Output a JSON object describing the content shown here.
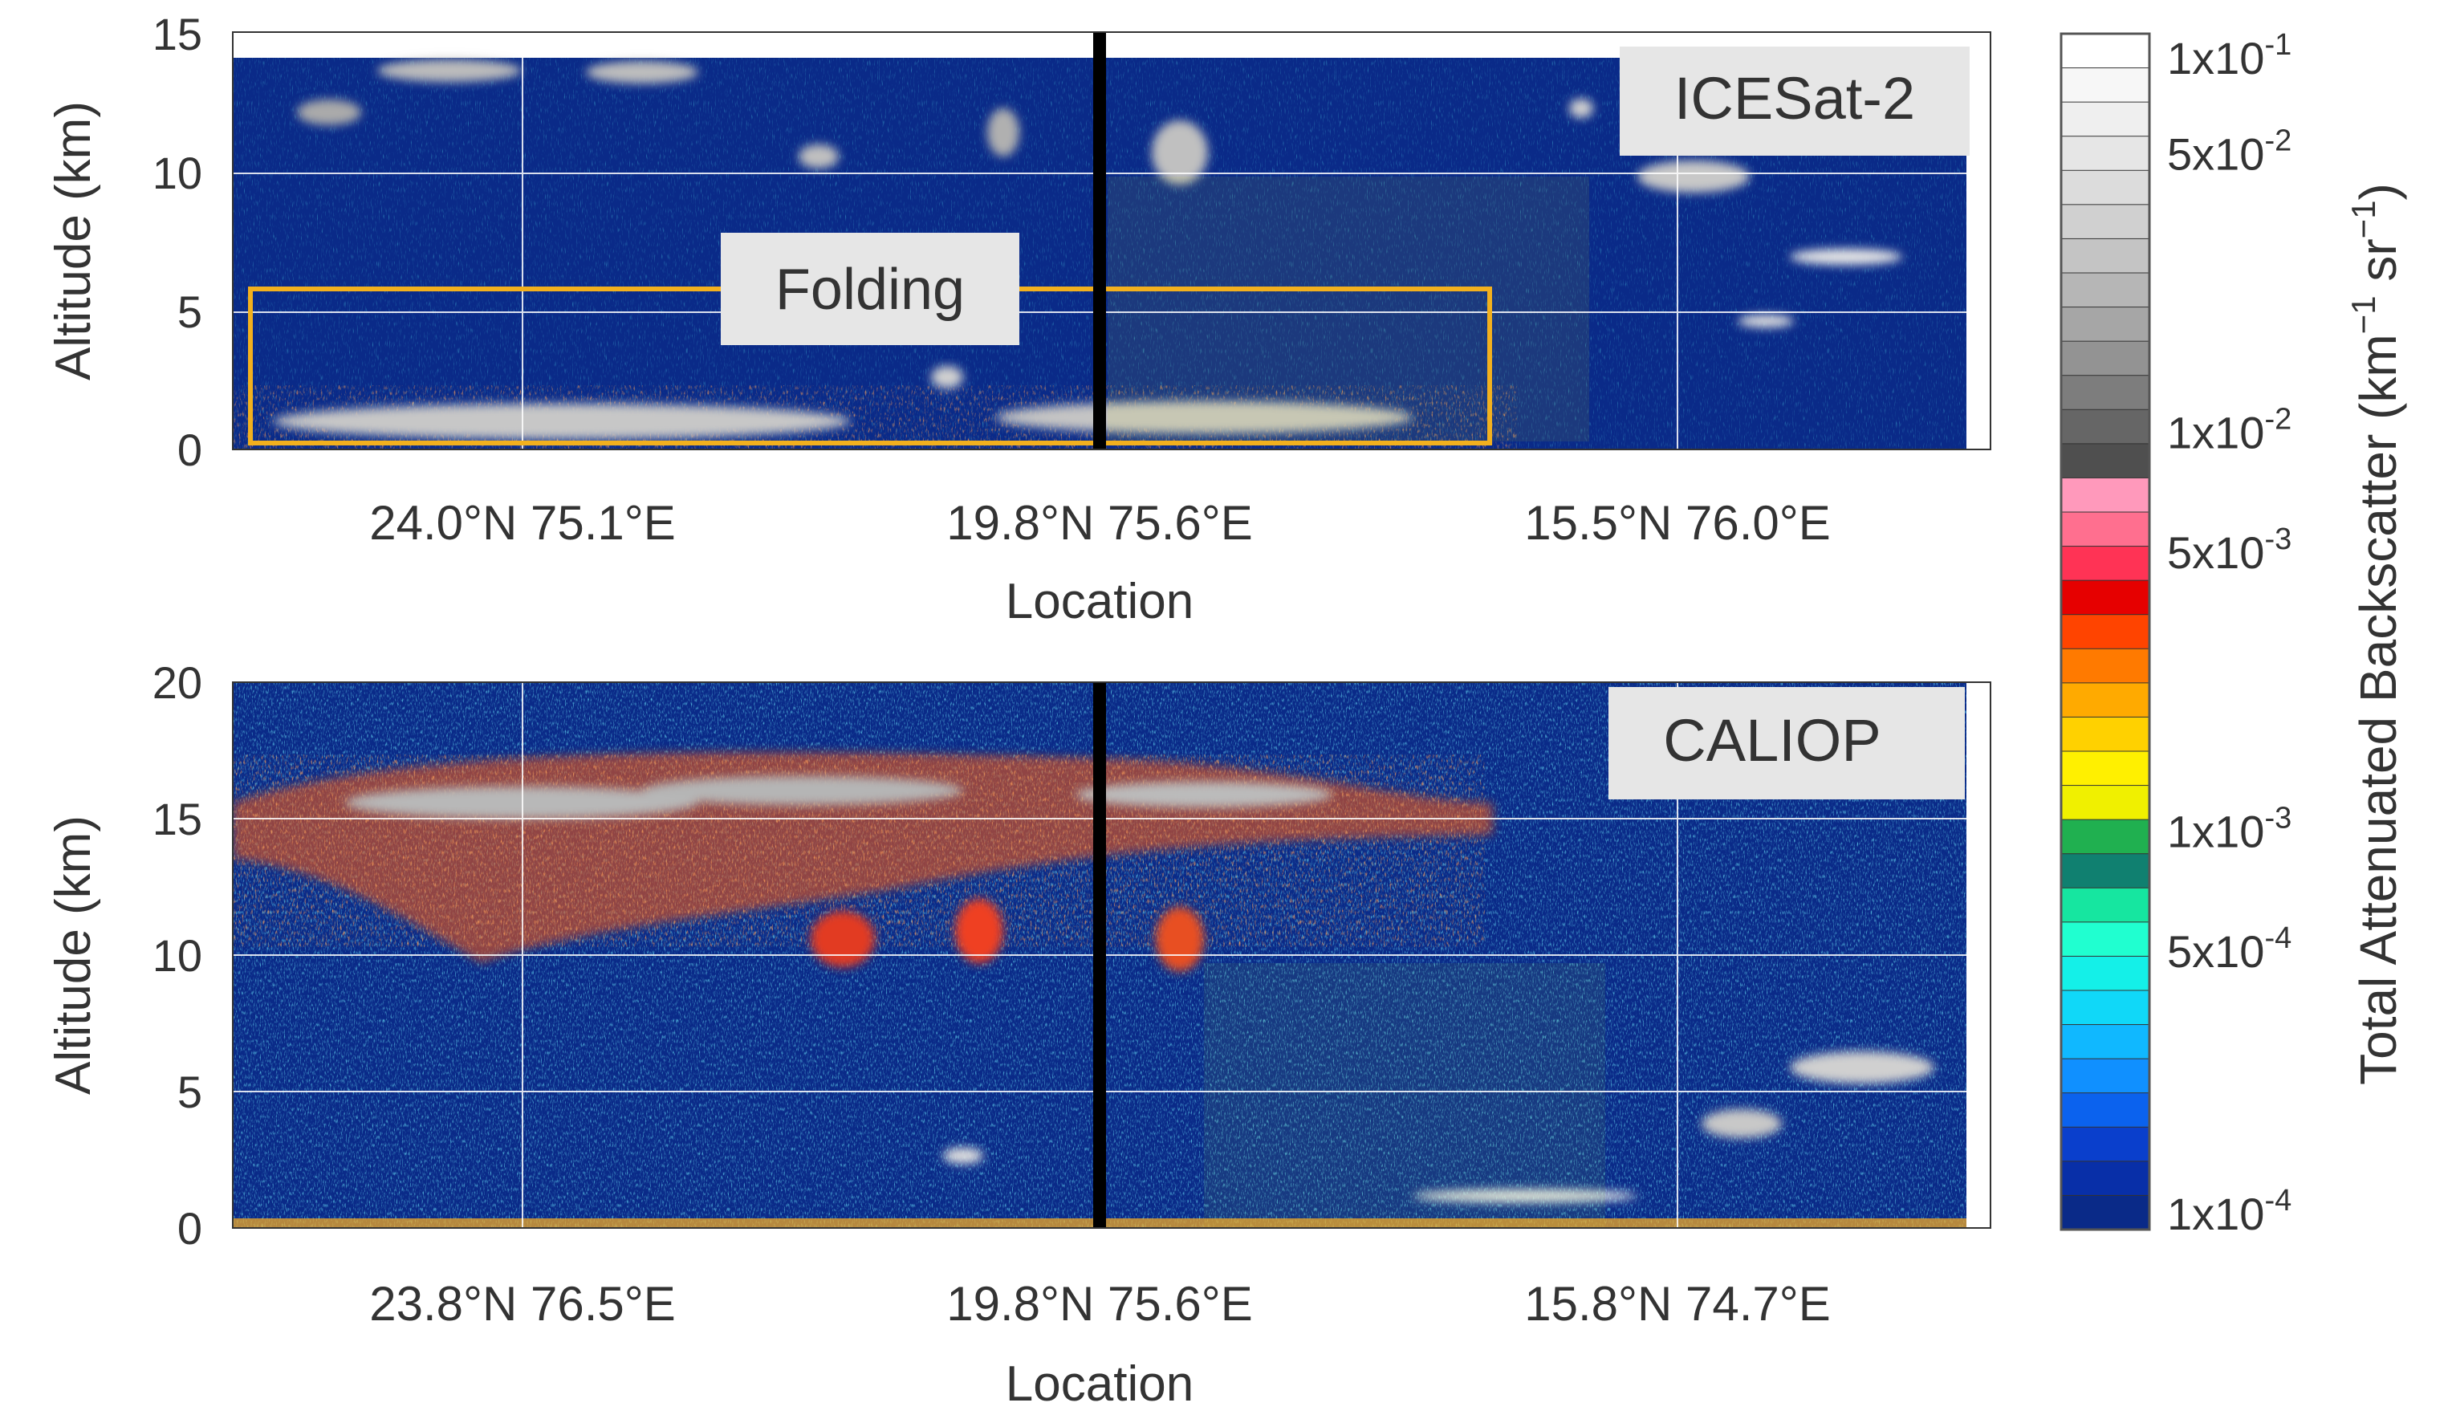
{
  "chart_data": [
    {
      "type": "heatmap",
      "panel_label": "ICESat-2",
      "ylabel": "Altitude (km)",
      "xlabel": "Location",
      "ylim": [
        0,
        15
      ],
      "yticks": [
        0,
        5,
        10,
        15
      ],
      "xtick_labels": [
        "24.0°N 75.1°E",
        "19.8°N 75.6°E",
        "15.5°N 76.0°E"
      ],
      "grid": true,
      "annotation": {
        "text": "Folding",
        "box_color": "#F2B01E",
        "altitude_range_km": [
          0.3,
          5.8
        ]
      },
      "marker_line": {
        "at_xtick": "19.8°N 75.6°E",
        "color": "#000000"
      }
    },
    {
      "type": "heatmap",
      "panel_label": "CALIOP",
      "ylabel": "Altitude (km)",
      "xlabel": "Location",
      "ylim": [
        0,
        20
      ],
      "yticks": [
        0,
        5,
        10,
        15,
        20
      ],
      "xtick_labels": [
        "23.8°N 76.5°E",
        "19.8°N 75.6°E",
        "15.8°N 74.7°E"
      ],
      "grid": true,
      "marker_line": {
        "at_xtick": "19.8°N 75.6°E",
        "color": "#000000"
      }
    }
  ],
  "colorbar": {
    "title_main": "Total Attenuated Backscatter (km",
    "title_sup1": "−1",
    "title_mid": " sr",
    "title_sup2": "−1",
    "title_end": ")",
    "scale": "log",
    "range": [
      0.0001,
      0.1
    ],
    "tick_labels": [
      {
        "mant": "1x10",
        "exp": "-1",
        "value": 0.1
      },
      {
        "mant": "5x10",
        "exp": "-2",
        "value": 0.05
      },
      {
        "mant": "1x10",
        "exp": "-2",
        "value": 0.01
      },
      {
        "mant": "5x10",
        "exp": "-3",
        "value": 0.005
      },
      {
        "mant": "1x10",
        "exp": "-3",
        "value": 0.001
      },
      {
        "mant": "5x10",
        "exp": "-4",
        "value": 0.0005
      },
      {
        "mant": "1x10",
        "exp": "-4",
        "value": 0.0001
      }
    ],
    "colors_top_to_bottom": [
      "#ffffff",
      "#f7f7f7",
      "#efefef",
      "#e6e6e6",
      "#dcdcdc",
      "#d0d0d0",
      "#c4c4c4",
      "#b6b6b6",
      "#a6a6a6",
      "#939393",
      "#7d7d7d",
      "#666666",
      "#4f4f4f",
      "#ff99bb",
      "#ff6f8f",
      "#ff3355",
      "#e60000",
      "#ff4400",
      "#ff7a00",
      "#ffaa00",
      "#ffd100",
      "#fff000",
      "#f0f000",
      "#20b050",
      "#108070",
      "#16e6a0",
      "#20ffd0",
      "#14f0e8",
      "#10d8f8",
      "#10b8ff",
      "#1090ff",
      "#0b62ee",
      "#0a3fcc",
      "#082fa8",
      "#0a2a88"
    ]
  }
}
